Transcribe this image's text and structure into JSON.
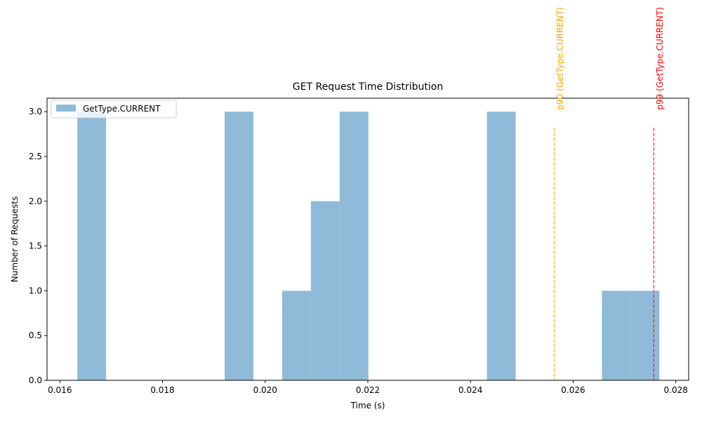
{
  "chart_data": {
    "type": "bar",
    "title": "GET Request Time Distribution",
    "xlabel": "Time (s)",
    "ylabel": "Number of Requests",
    "xlim": [
      0.01575,
      0.02825
    ],
    "ylim": [
      0,
      3.15
    ],
    "x_ticks": [
      0.016,
      0.018,
      0.02,
      0.022,
      0.024,
      0.026,
      0.028
    ],
    "x_tick_labels": [
      "0.016",
      "0.018",
      "0.020",
      "0.022",
      "0.024",
      "0.026",
      "0.028"
    ],
    "y_ticks": [
      0,
      0.5,
      1.0,
      1.5,
      2.0,
      2.5,
      3.0
    ],
    "y_tick_labels": [
      "0.0",
      "0.5",
      "1.0",
      "1.5",
      "2.0",
      "2.5",
      "3.0"
    ],
    "legend_position": "top-left",
    "series": [
      {
        "name": "GetType.CURRENT",
        "color": "#8fbbd9",
        "bins": [
          {
            "x0": 0.01634,
            "x1": 0.0169,
            "count": 3
          },
          {
            "x0": 0.01921,
            "x1": 0.01977,
            "count": 3
          },
          {
            "x0": 0.02033,
            "x1": 0.02089,
            "count": 1
          },
          {
            "x0": 0.02089,
            "x1": 0.02145,
            "count": 2
          },
          {
            "x0": 0.02145,
            "x1": 0.02201,
            "count": 3
          },
          {
            "x0": 0.02432,
            "x1": 0.02488,
            "count": 3
          },
          {
            "x0": 0.02656,
            "x1": 0.02712,
            "count": 1
          },
          {
            "x0": 0.02712,
            "x1": 0.02768,
            "count": 1
          }
        ]
      }
    ],
    "annotations": [
      {
        "label": "p90 (GetType.CURRENT)",
        "x": 0.02563,
        "color": "#ffa500"
      },
      {
        "label": "p99 (GetType.CURRENT)",
        "x": 0.02757,
        "color": "#ff0000"
      }
    ]
  }
}
